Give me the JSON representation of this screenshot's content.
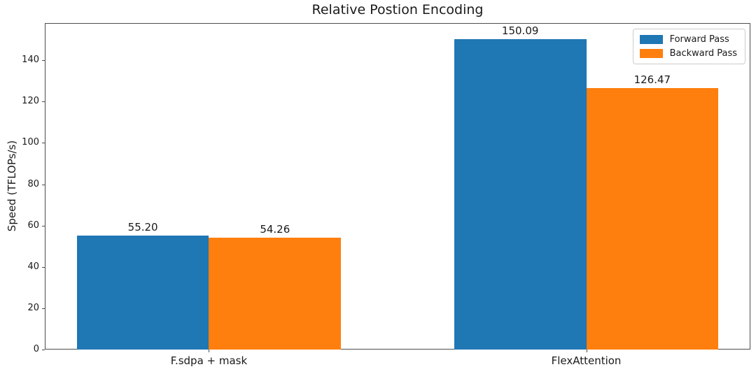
{
  "chart_data": {
    "type": "bar",
    "title": "Relative Postion Encoding",
    "xlabel": "",
    "ylabel": "Speed (TFLOPs/s)",
    "categories": [
      "F.sdpa + mask",
      "FlexAttention"
    ],
    "series": [
      {
        "name": "Forward Pass",
        "color": "#1f77b4",
        "values": [
          55.2,
          150.09
        ],
        "labels": [
          "55.20",
          "150.09"
        ]
      },
      {
        "name": "Backward Pass",
        "color": "#ff7f0e",
        "values": [
          54.26,
          126.47
        ],
        "labels": [
          "54.26",
          "126.47"
        ]
      }
    ],
    "yticks": [
      0,
      20,
      40,
      60,
      80,
      100,
      120,
      140
    ],
    "ylim": [
      0,
      158
    ],
    "grid": false,
    "legend_position": "upper right",
    "text_color": "#1a1a1a",
    "spine_color": "#4d4d4d"
  }
}
